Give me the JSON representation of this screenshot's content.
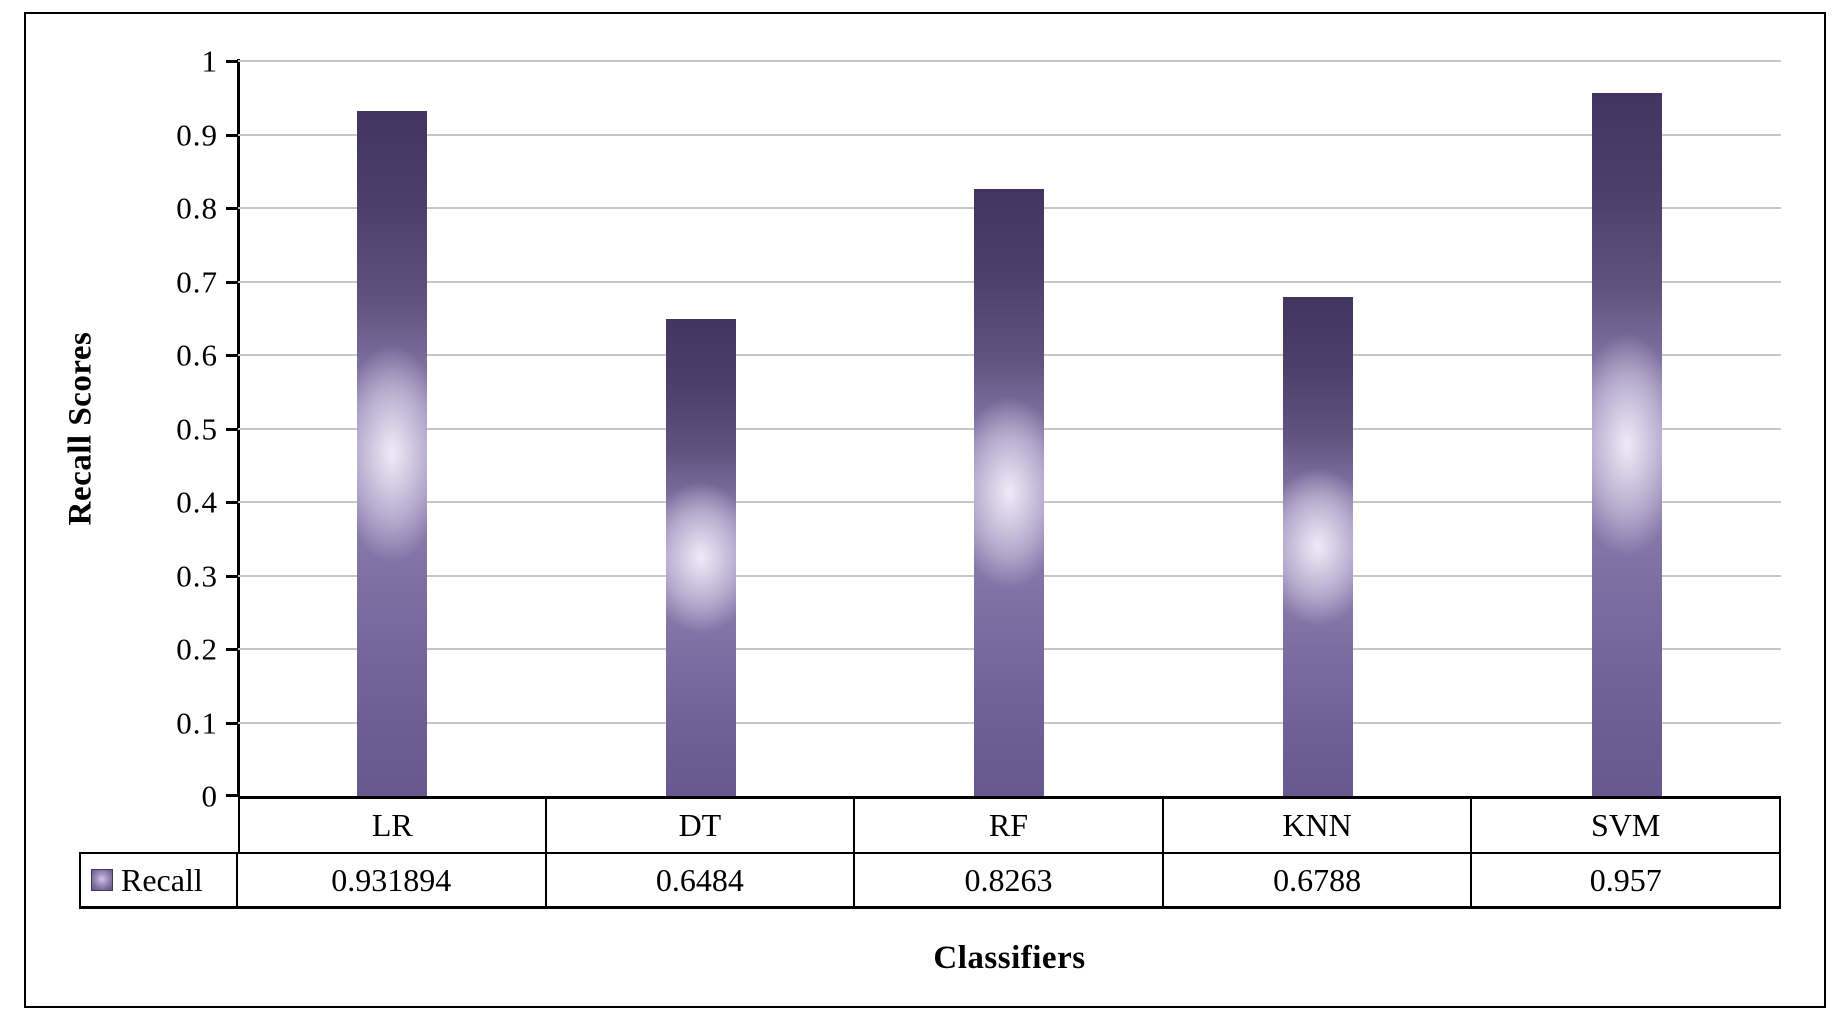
{
  "chart_data": {
    "type": "bar",
    "title": "",
    "categories": [
      "LR",
      "DT",
      "RF",
      "KNN",
      "SVM"
    ],
    "series": [
      {
        "name": "Recall",
        "values": [
          0.931894,
          0.6484,
          0.8263,
          0.6788,
          0.957
        ]
      }
    ],
    "value_labels": [
      "0.931894",
      "0.6484",
      "0.8263",
      "0.6788",
      "0.957"
    ],
    "xlabel": "Classifiers",
    "ylabel": "Recall Scores",
    "ylim": [
      0,
      1
    ],
    "y_ticks": [
      "1",
      "0.9",
      "0.8",
      "0.7",
      "0.6",
      "0.5",
      "0.4",
      "0.3",
      "0.2",
      "0.1",
      "0"
    ],
    "grid": true,
    "legend_position": "data-table-left",
    "colors": {
      "bar_top": "#433460",
      "bar_glow": "#d8d0e8",
      "bar_bottom": "#685890",
      "gridline": "#c6c6c6",
      "axis": "#000000",
      "text": "#000000"
    }
  }
}
